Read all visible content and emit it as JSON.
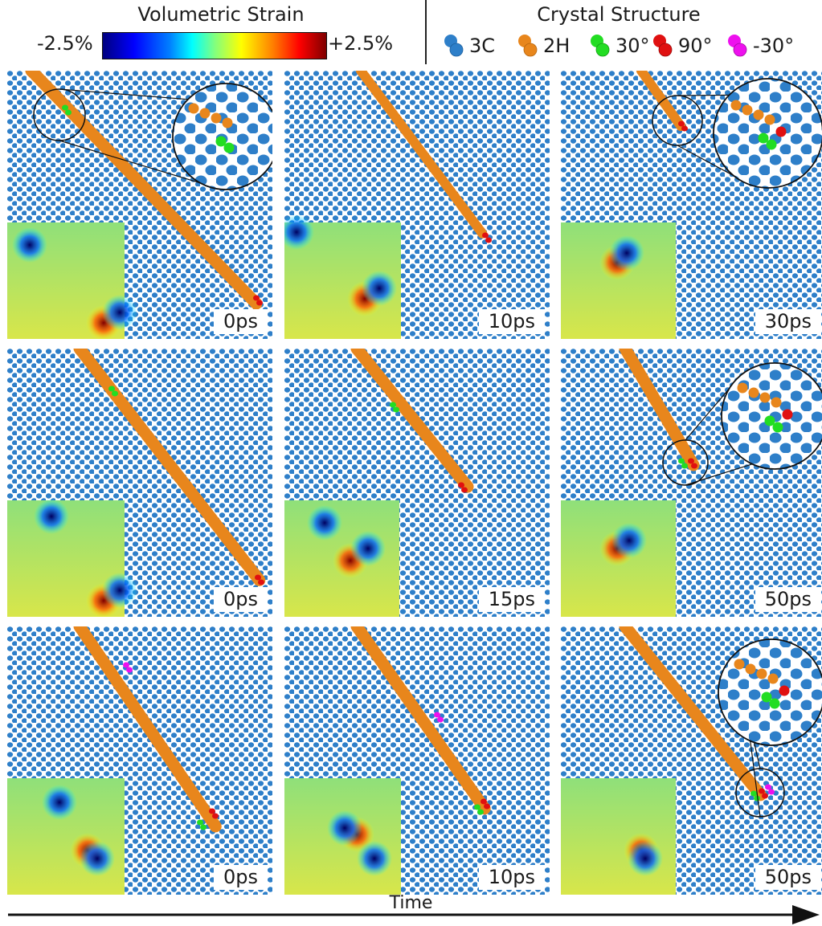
{
  "header": {
    "strain_title": "Volumetric Strain",
    "strain_min": "-2.5%",
    "strain_max": "+2.5%",
    "structure_title": "Crystal Structure",
    "legend": [
      {
        "label": "3C",
        "color": "#2e7fc9"
      },
      {
        "label": "2H",
        "color": "#e8861c"
      },
      {
        "label": "30°",
        "color": "#22dd22"
      },
      {
        "label": "90°",
        "color": "#e01010"
      },
      {
        "label": "-30°",
        "color": "#ee10ee"
      }
    ]
  },
  "colors": {
    "bg_3c": "#2e7fc9",
    "bg_light": "#ffffff",
    "orange_2h": "#e8861c",
    "green_30": "#22dd22",
    "red_90": "#e01010",
    "magenta_m30": "#ee10ee"
  },
  "panels": [
    {
      "id": "r1c1",
      "time": "0ps"
    },
    {
      "id": "r1c2",
      "time": "10ps"
    },
    {
      "id": "r1c3",
      "time": "30ps"
    },
    {
      "id": "r2c1",
      "time": "0ps"
    },
    {
      "id": "r2c2",
      "time": "15ps"
    },
    {
      "id": "r2c3",
      "time": "50ps"
    },
    {
      "id": "r3c1",
      "time": "0ps"
    },
    {
      "id": "r3c2",
      "time": "10ps"
    },
    {
      "id": "r3c3",
      "time": "50ps"
    }
  ],
  "axis": {
    "label": "Time"
  }
}
